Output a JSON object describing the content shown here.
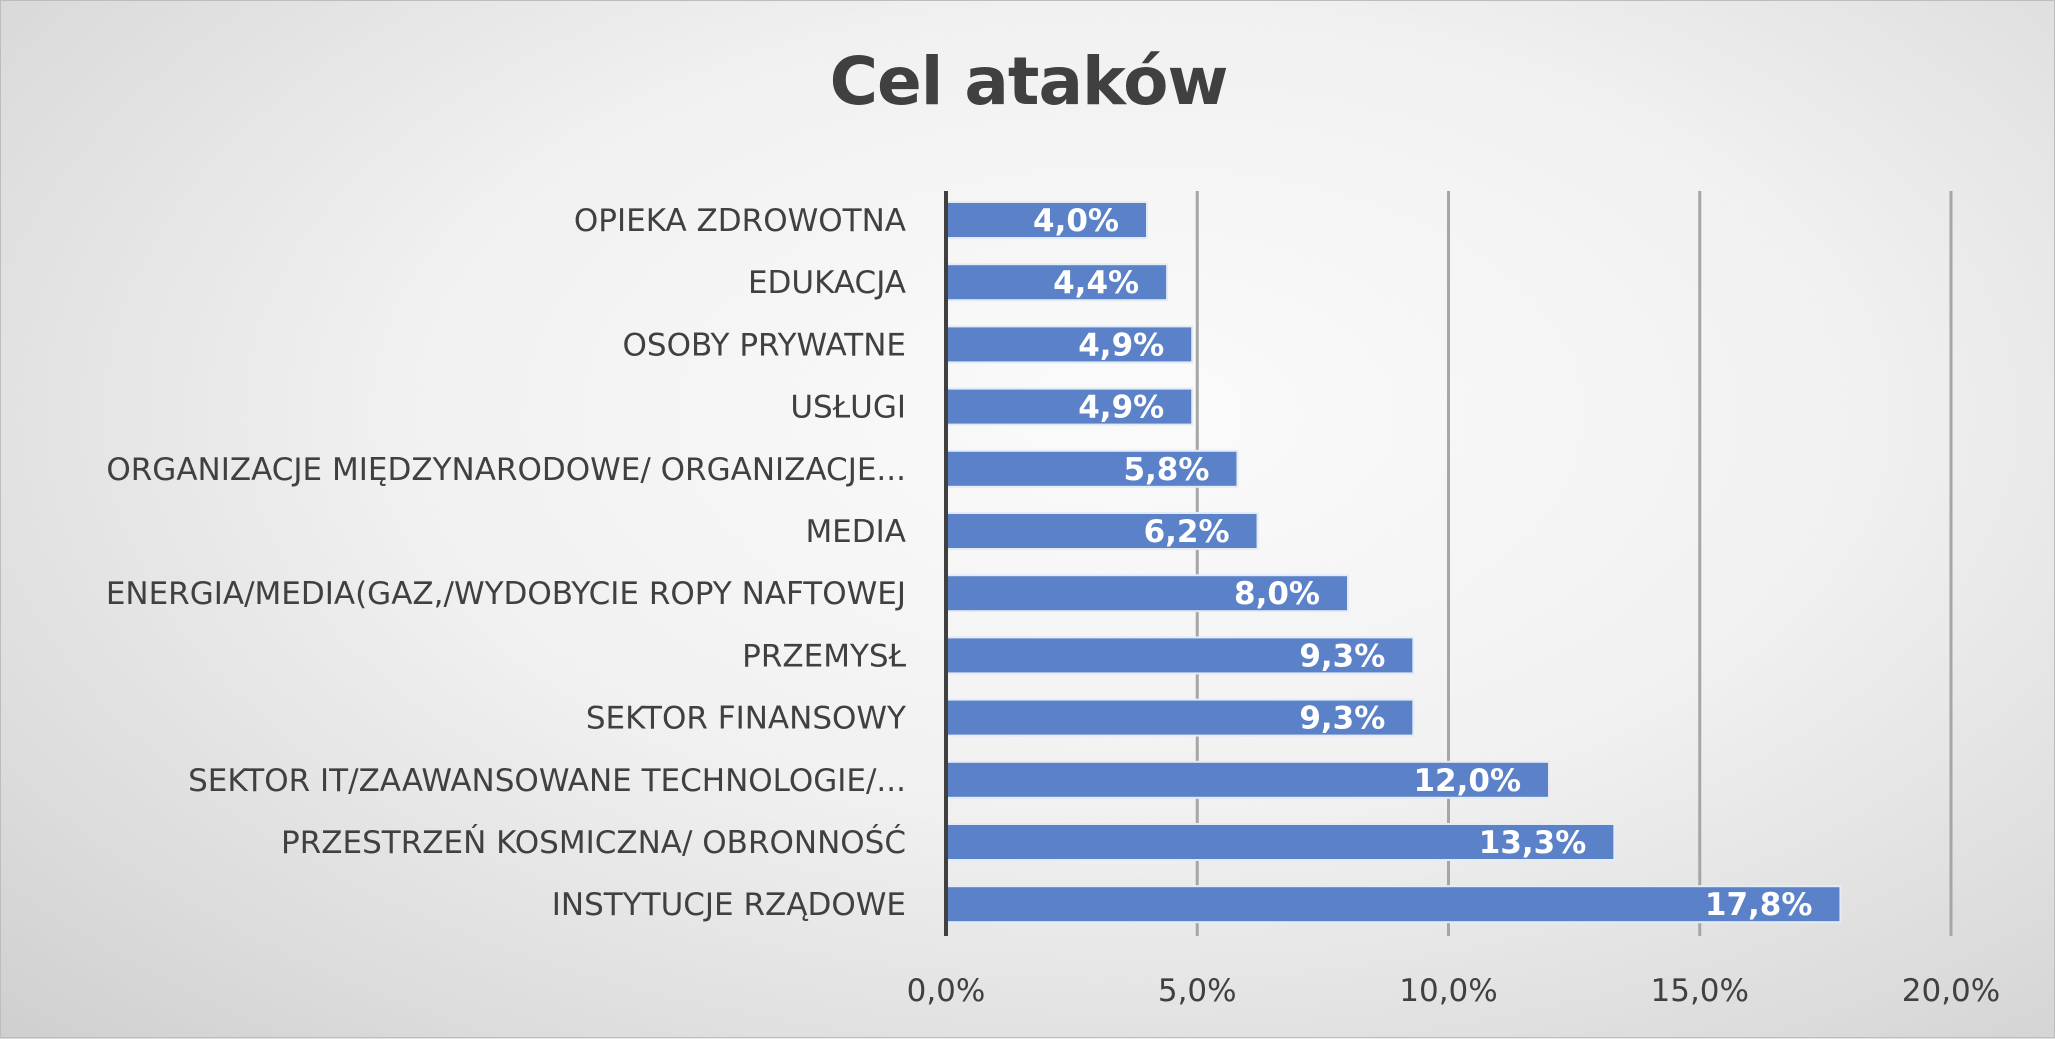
{
  "chart_data": {
    "type": "bar",
    "orientation": "horizontal",
    "title": "Cel ataków",
    "categories": [
      "OPIEKA ZDROWOTNA",
      "EDUKACJA",
      "OSOBY PRYWATNE",
      "USŁUGI",
      "ORGANIZACJE MIĘDZYNARODOWE/ ORGANIZACJE...",
      "MEDIA",
      "ENERGIA/MEDIA(GAZ,/WYDOBYCIE ROPY NAFTOWEJ",
      "PRZEMYSŁ",
      "SEKTOR FINANSOWY",
      "SEKTOR IT/ZAAWANSOWANE TECHNOLOGIE/...",
      "PRZESTRZEŃ KOSMICZNA/ OBRONNOŚĆ",
      "INSTYTUCJE RZĄDOWE"
    ],
    "values": [
      4.0,
      4.4,
      4.9,
      4.9,
      5.8,
      6.2,
      8.0,
      9.3,
      9.3,
      12.0,
      13.3,
      17.8
    ],
    "value_labels": [
      "4,0%",
      "4,4%",
      "4,9%",
      "4,9%",
      "5,8%",
      "6,2%",
      "8,0%",
      "9,3%",
      "9,3%",
      "12,0%",
      "13,3%",
      "17,8%"
    ],
    "xlim": [
      0,
      20
    ],
    "x_ticks": [
      0,
      5,
      10,
      15,
      20
    ],
    "x_tick_labels": [
      "0,0%",
      "5,0%",
      "10,0%",
      "15,0%",
      "20,0%"
    ],
    "xlabel": "",
    "ylabel": "",
    "grid": true,
    "legend": "none",
    "colors": {
      "bar_fill": "#5b82c8",
      "bar_stroke": "#e3ebf7",
      "gridline": "#a6a6a6",
      "axis": "#404040",
      "text": "#404040",
      "data_label": "#ffffff"
    }
  }
}
